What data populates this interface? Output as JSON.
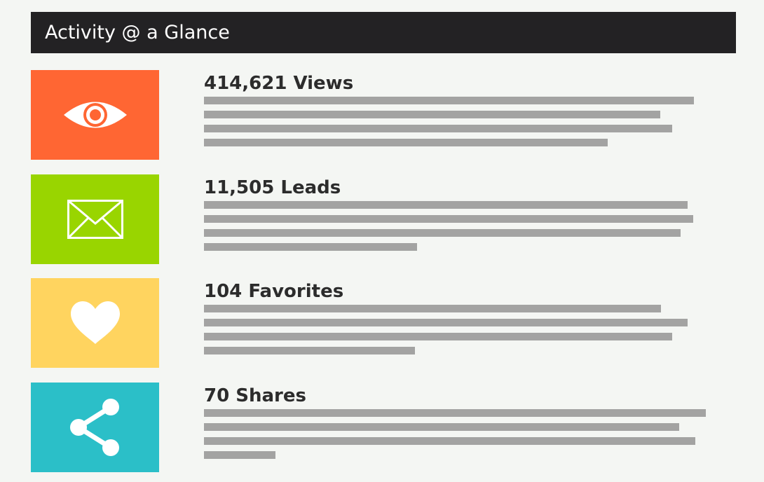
{
  "header": {
    "title": "Activity @ a Glance"
  },
  "colors": {
    "header_bg": "#232224",
    "page_bg": "#f4f6f3",
    "views": "#ff6633",
    "leads": "#99d500",
    "favorites": "#ffd45f",
    "shares": "#2bbfc8",
    "placeholder_bar": "#a3a3a2"
  },
  "stats": [
    {
      "label": "414,621 Views",
      "icon": "eye-icon"
    },
    {
      "label": "11,505 Leads",
      "icon": "envelope-icon"
    },
    {
      "label": "104 Favorites",
      "icon": "heart-icon"
    },
    {
      "label": "70 Shares",
      "icon": "share-icon"
    }
  ]
}
